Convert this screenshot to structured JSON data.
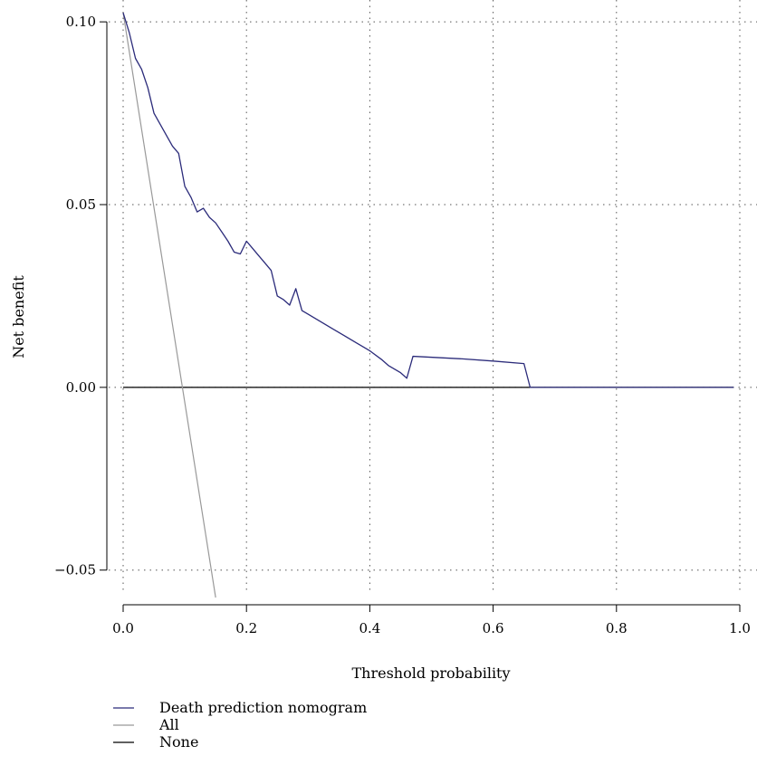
{
  "chart_data": {
    "type": "line",
    "title": "",
    "xlabel": "Threshold probability",
    "ylabel": "Net benefit",
    "xlim": [
      0.0,
      1.0
    ],
    "ylim": [
      -0.0575,
      0.1035
    ],
    "x_ticks": [
      0.0,
      0.2,
      0.4,
      0.6,
      0.8,
      1.0
    ],
    "x_tick_labels": [
      "0.0",
      "0.2",
      "0.4",
      "0.6",
      "0.8",
      "1.0"
    ],
    "y_ticks": [
      -0.05,
      0.0,
      0.05,
      0.1
    ],
    "y_tick_labels": [
      "−0.05",
      "0.00",
      "0.05",
      "0.10"
    ],
    "grid": true,
    "legend_position": "bottom-left",
    "series": [
      {
        "name": "Death prediction nomogram",
        "color": "#2b2b7a",
        "x": [
          0.0,
          0.01,
          0.02,
          0.03,
          0.04,
          0.05,
          0.06,
          0.07,
          0.08,
          0.09,
          0.1,
          0.11,
          0.12,
          0.13,
          0.14,
          0.15,
          0.16,
          0.17,
          0.18,
          0.19,
          0.2,
          0.21,
          0.22,
          0.23,
          0.24,
          0.25,
          0.26,
          0.27,
          0.28,
          0.29,
          0.3,
          0.32,
          0.34,
          0.36,
          0.38,
          0.4,
          0.42,
          0.43,
          0.44,
          0.45,
          0.46,
          0.47,
          0.55,
          0.6,
          0.65,
          0.66,
          0.99
        ],
        "y": [
          0.1025,
          0.097,
          0.09,
          0.087,
          0.082,
          0.075,
          0.072,
          0.069,
          0.066,
          0.064,
          0.055,
          0.052,
          0.048,
          0.049,
          0.0465,
          0.045,
          0.0425,
          0.04,
          0.037,
          0.0365,
          0.04,
          0.038,
          0.036,
          0.034,
          0.032,
          0.025,
          0.024,
          0.0225,
          0.027,
          0.021,
          0.02,
          0.018,
          0.016,
          0.014,
          0.012,
          0.01,
          0.0075,
          0.006,
          0.005,
          0.004,
          0.0025,
          0.0085,
          0.0078,
          0.0072,
          0.0065,
          0.0,
          0.0
        ]
      },
      {
        "name": "All",
        "color": "#999999",
        "x": [
          0.0,
          0.15
        ],
        "y": [
          0.1025,
          -0.0575
        ]
      },
      {
        "name": "None",
        "color": "#000000",
        "x": [
          0.0,
          0.99
        ],
        "y": [
          0.0,
          0.0
        ]
      }
    ]
  }
}
